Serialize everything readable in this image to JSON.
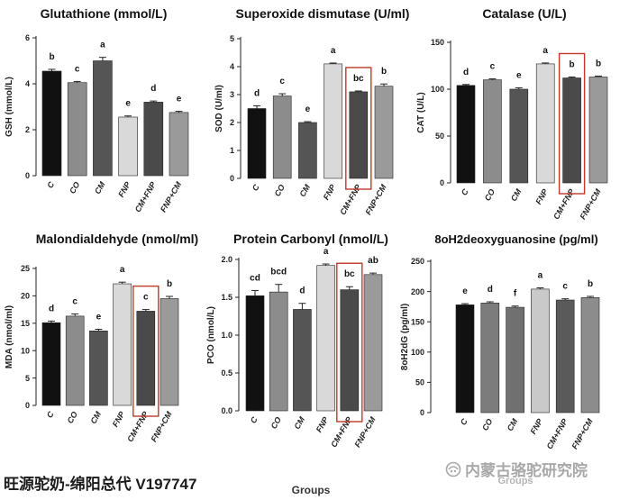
{
  "figure": {
    "footer_text": "旺源驼奶-绵阳总代 V197747",
    "watermark_text": "内蒙古骆驼研究院",
    "watermark_icon": "wechat-icon"
  },
  "chart_data": [
    {
      "type": "bar",
      "title": "Glutathione (mmol/L)",
      "ylabel": "GSH (mmol/L)",
      "xlabel": "",
      "categories": [
        "C",
        "CO",
        "CM",
        "FNP",
        "CM+FNP",
        "FNP+CM"
      ],
      "values": [
        4.55,
        4.05,
        5.0,
        2.55,
        3.2,
        2.75
      ],
      "errors": [
        0.08,
        0.05,
        0.15,
        0.05,
        0.05,
        0.05
      ],
      "significance_letters": [
        "b",
        "c",
        "a",
        "e",
        "d",
        "e"
      ],
      "ylim": [
        0,
        6
      ],
      "yticks": [
        "0",
        "2",
        "4",
        "6"
      ],
      "grid": false,
      "bar_colors": [
        "#111111",
        "#8c8c8c",
        "#555555",
        "#d9d9d9",
        "#4a4a4a",
        "#9a9a9a"
      ],
      "boxed": [
        false,
        false,
        false,
        false,
        false,
        false
      ]
    },
    {
      "type": "bar",
      "title": "Superoxide dismutase (U/ml)",
      "ylabel": "SOD (U/ml)",
      "xlabel": "",
      "categories": [
        "C",
        "CO",
        "CM",
        "FNP",
        "CM+FNP",
        "FNP+CM"
      ],
      "values": [
        2.5,
        2.95,
        2.0,
        4.1,
        3.1,
        3.3
      ],
      "errors": [
        0.1,
        0.08,
        0.03,
        0.03,
        0.03,
        0.08
      ],
      "significance_letters": [
        "d",
        "c",
        "e",
        "a",
        "bc",
        "b"
      ],
      "ylim": [
        0,
        5
      ],
      "yticks": [
        "0",
        "1",
        "2",
        "3",
        "4",
        "5"
      ],
      "grid": false,
      "bar_colors": [
        "#111111",
        "#8c8c8c",
        "#555555",
        "#d9d9d9",
        "#4a4a4a",
        "#9a9a9a"
      ],
      "boxed": [
        false,
        false,
        false,
        false,
        true,
        false
      ],
      "box_color": "#c0392b"
    },
    {
      "type": "bar",
      "title": "Catalase (U/L)",
      "ylabel": "CAT (U/L)",
      "xlabel": "",
      "categories": [
        "C",
        "CO",
        "CM",
        "FNP",
        "CM+FNP",
        "FNP+CM"
      ],
      "values": [
        104,
        110,
        100,
        127,
        112,
        113
      ],
      "errors": [
        1,
        1,
        1.5,
        1,
        1,
        1
      ],
      "significance_letters": [
        "d",
        "c",
        "e",
        "a",
        "b",
        "b"
      ],
      "ylim": [
        0,
        150
      ],
      "yticks": [
        "0",
        "50",
        "100",
        "150"
      ],
      "grid": false,
      "bar_colors": [
        "#111111",
        "#8c8c8c",
        "#555555",
        "#d9d9d9",
        "#4a4a4a",
        "#9a9a9a"
      ],
      "boxed": [
        false,
        false,
        false,
        false,
        true,
        false
      ],
      "box_color": "#c0392b"
    },
    {
      "type": "bar",
      "title": "Malondialdehyde (nmol/ml)",
      "ylabel": "MDA (nmol/ml)",
      "xlabel": "",
      "categories": [
        "C",
        "CO",
        "CM",
        "FNP",
        "CM+FNP",
        "FNP+CM"
      ],
      "values": [
        15.1,
        16.3,
        13.6,
        22.2,
        17.2,
        19.5
      ],
      "errors": [
        0.3,
        0.4,
        0.3,
        0.3,
        0.3,
        0.4
      ],
      "significance_letters": [
        "d",
        "c",
        "e",
        "a",
        "c",
        "b"
      ],
      "ylim": [
        0,
        25
      ],
      "yticks": [
        "0",
        "5",
        "10",
        "15",
        "20",
        "25"
      ],
      "grid": false,
      "bar_colors": [
        "#111111",
        "#8c8c8c",
        "#555555",
        "#d9d9d9",
        "#4a4a4a",
        "#9a9a9a"
      ],
      "boxed": [
        false,
        false,
        false,
        false,
        true,
        false
      ],
      "box_color": "#c0392b"
    },
    {
      "type": "bar",
      "title": "Protein Carbonyl (nmol/L)",
      "ylabel": "PCO (nmol/L)",
      "xlabel": "Groups",
      "categories": [
        "C",
        "CO",
        "CM",
        "FNP",
        "CM+FNP",
        "FNP+CM"
      ],
      "values": [
        1.52,
        1.57,
        1.34,
        1.92,
        1.6,
        1.8
      ],
      "errors": [
        0.07,
        0.1,
        0.08,
        0.02,
        0.04,
        0.02
      ],
      "significance_letters": [
        "cd",
        "bcd",
        "d",
        "a",
        "bc",
        "ab"
      ],
      "ylim": [
        0,
        2.0
      ],
      "yticks": [
        "0.0",
        "0.5",
        "1.0",
        "1.5",
        "2.0"
      ],
      "grid": false,
      "bar_colors": [
        "#111111",
        "#8c8c8c",
        "#555555",
        "#d9d9d9",
        "#4a4a4a",
        "#9a9a9a"
      ],
      "boxed": [
        false,
        false,
        false,
        false,
        true,
        false
      ],
      "box_color": "#c0392b"
    },
    {
      "type": "bar",
      "title": "8oH2deoxyguanosine (pg/ml)",
      "ylabel": "8oH2dG (pg/ml)",
      "xlabel": "Groups",
      "categories": [
        "C",
        "CO",
        "CM",
        "FNP",
        "CM+FNP",
        "FNP+CM"
      ],
      "values": [
        178,
        181,
        174,
        204,
        186,
        190
      ],
      "errors": [
        2,
        2,
        2,
        2,
        2,
        2
      ],
      "significance_letters": [
        "e",
        "d",
        "f",
        "a",
        "c",
        "b"
      ],
      "ylim": [
        0,
        250
      ],
      "yticks": [
        "0",
        "50",
        "100",
        "150",
        "200",
        "250"
      ],
      "grid": false,
      "bar_colors": [
        "#111111",
        "#7c7c7c",
        "#707070",
        "#c9c9c9",
        "#5a5a5a",
        "#8c8c8c"
      ],
      "boxed": [
        false,
        false,
        false,
        false,
        false,
        false
      ]
    }
  ]
}
